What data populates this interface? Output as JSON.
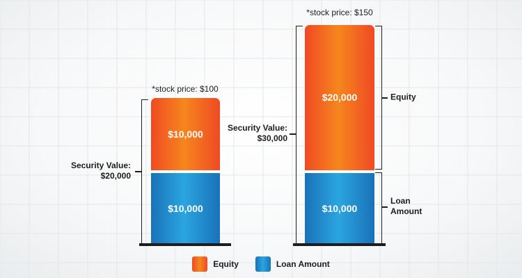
{
  "chart_data": {
    "type": "bar",
    "stacked": true,
    "title": "",
    "xlabel": "",
    "ylabel": "",
    "grid": true,
    "legend_position": "bottom",
    "categories": [
      "*stock price: $100",
      "*stock price: $150"
    ],
    "series": [
      {
        "name": "Loan Amount",
        "values": [
          10000,
          10000
        ],
        "value_labels": [
          "$10,000",
          "$10,000"
        ],
        "color": "#2a9ad8"
      },
      {
        "name": "Equity",
        "values": [
          10000,
          20000
        ],
        "value_labels": [
          "$10,000",
          "$20,000"
        ],
        "color": "#f26b22"
      }
    ],
    "totals": [
      {
        "label": "Security Value:",
        "value": "$20,000"
      },
      {
        "label": "Security Value:",
        "value": "$30,000"
      }
    ],
    "segment_annotations": [
      {
        "series": "Equity",
        "text": "Equity"
      },
      {
        "series": "Loan Amount",
        "line1": "Loan",
        "line2": "Amount"
      }
    ],
    "ylim": [
      0,
      30000
    ]
  }
}
